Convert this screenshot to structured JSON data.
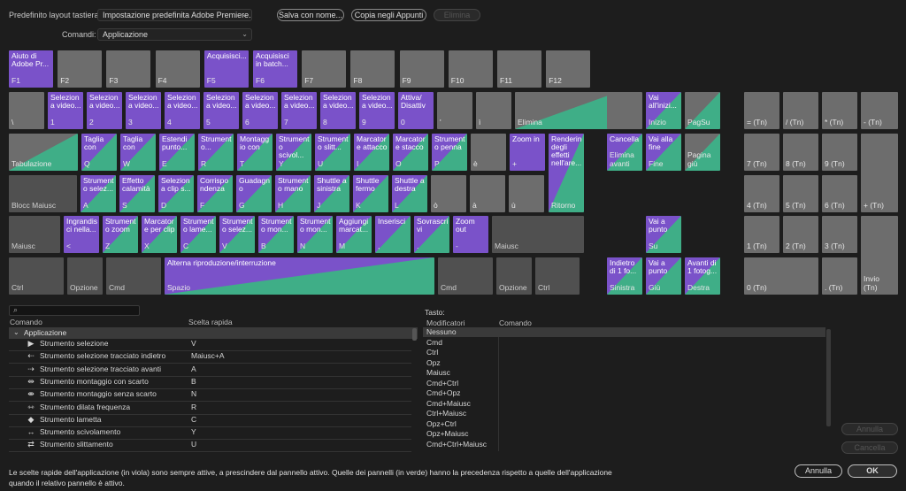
{
  "top": {
    "preset_label": "Predefinito layout tastiera:",
    "preset_value": "Impostazione predefinita Adobe Premiere...",
    "commands_label": "Comandi:",
    "commands_value": "Applicazione",
    "save_as": "Salva con nome...",
    "copy": "Copia negli Appunti",
    "delete": "Elimina"
  },
  "keyboard": {
    "row1": [
      {
        "cmd": "Aiuto di\nAdobe Pr...",
        "key": "F1",
        "c": "purple"
      },
      {
        "cmd": "",
        "key": "F2",
        "c": "grey"
      },
      {
        "cmd": "",
        "key": "F3",
        "c": "grey"
      },
      {
        "cmd": "",
        "key": "F4",
        "c": "grey"
      },
      {
        "cmd": "Acquisisci...",
        "key": "F5",
        "c": "purple"
      },
      {
        "cmd": "Acquisisci\nin batch...",
        "key": "F6",
        "c": "purple"
      },
      {
        "cmd": "",
        "key": "F7",
        "c": "grey"
      },
      {
        "cmd": "",
        "key": "F8",
        "c": "grey"
      },
      {
        "cmd": "",
        "key": "F9",
        "c": "grey"
      },
      {
        "cmd": "",
        "key": "F10",
        "c": "grey"
      },
      {
        "cmd": "",
        "key": "F11",
        "c": "grey"
      },
      {
        "cmd": "",
        "key": "F12",
        "c": "grey"
      }
    ],
    "row2": [
      {
        "cmd": "",
        "key": "\\",
        "c": "grey"
      },
      {
        "cmd": "Selezion\na video...",
        "key": "1",
        "c": "purple"
      },
      {
        "cmd": "Selezion\na video...",
        "key": "2",
        "c": "purple"
      },
      {
        "cmd": "Selezion\na video...",
        "key": "3",
        "c": "purple"
      },
      {
        "cmd": "Selezion\na video...",
        "key": "4",
        "c": "purple"
      },
      {
        "cmd": "Selezion\na video...",
        "key": "5",
        "c": "purple"
      },
      {
        "cmd": "Selezion\na video...",
        "key": "6",
        "c": "purple"
      },
      {
        "cmd": "Selezion\na video...",
        "key": "7",
        "c": "purple"
      },
      {
        "cmd": "Selezion\na video...",
        "key": "8",
        "c": "purple"
      },
      {
        "cmd": "Selezion\na video...",
        "key": "9",
        "c": "purple"
      },
      {
        "cmd": "Attiva/\nDisattiv",
        "key": "0",
        "c": "purple"
      },
      {
        "cmd": "",
        "key": "'",
        "c": "grey"
      },
      {
        "cmd": "",
        "key": "ì",
        "c": "grey"
      },
      {
        "cmd": "",
        "key": "Elimina",
        "c": "mixg"
      }
    ],
    "row3": [
      {
        "cmd": "",
        "key": "Tabulazione",
        "c": "mixg"
      },
      {
        "cmd": "Taglia\ncon",
        "key": "Q",
        "c": "split"
      },
      {
        "cmd": "Taglia\ncon",
        "key": "W",
        "c": "split"
      },
      {
        "cmd": "Estendi\npunto...",
        "key": "E",
        "c": "split"
      },
      {
        "cmd": "Strument\no...",
        "key": "R",
        "c": "split"
      },
      {
        "cmd": "Montagg\nio con",
        "key": "T",
        "c": "split"
      },
      {
        "cmd": "Strument\no scivol...",
        "key": "Y",
        "c": "split"
      },
      {
        "cmd": "Strument\no slitt...",
        "key": "U",
        "c": "split"
      },
      {
        "cmd": "Marcator\ne attacco",
        "key": "I",
        "c": "split"
      },
      {
        "cmd": "Marcator\ne stacco",
        "key": "O",
        "c": "split"
      },
      {
        "cmd": "Strument\no penna",
        "key": "P",
        "c": "split"
      },
      {
        "cmd": "",
        "key": "è",
        "c": "grey"
      },
      {
        "cmd": "Zoom in",
        "key": "+",
        "c": "purple"
      },
      {
        "cmd": "Rendering\ndegli\neffetti\nnell'are...",
        "key": "Ritorno",
        "c": "split"
      }
    ],
    "row4": [
      {
        "cmd": "",
        "key": "Blocc Maiusc",
        "c": "dark"
      },
      {
        "cmd": "Strument\no selez...",
        "key": "A",
        "c": "split"
      },
      {
        "cmd": "Effetto\ncalamità",
        "key": "S",
        "c": "split"
      },
      {
        "cmd": "Selezion\na clip s...",
        "key": "D",
        "c": "split"
      },
      {
        "cmd": "Corrispo\nndenza",
        "key": "F",
        "c": "split"
      },
      {
        "cmd": "Guadagn\no",
        "key": "G",
        "c": "split"
      },
      {
        "cmd": "Strument\no mano",
        "key": "H",
        "c": "split"
      },
      {
        "cmd": "Shuttle a\nsinistra",
        "key": "J",
        "c": "split"
      },
      {
        "cmd": "Shuttle\nfermo",
        "key": "K",
        "c": "split"
      },
      {
        "cmd": "Shuttle a\ndestra",
        "key": "L",
        "c": "split"
      },
      {
        "cmd": "",
        "key": "ò",
        "c": "grey"
      },
      {
        "cmd": "",
        "key": "à",
        "c": "grey"
      },
      {
        "cmd": "",
        "key": "ù",
        "c": "grey"
      }
    ],
    "row5": [
      {
        "cmd": "",
        "key": "Maiusc",
        "c": "dark"
      },
      {
        "cmd": "Ingrandis\nci nella...",
        "key": "<",
        "c": "purple"
      },
      {
        "cmd": "Strument\no zoom",
        "key": "Z",
        "c": "split"
      },
      {
        "cmd": "Marcator\ne per clip",
        "key": "X",
        "c": "split"
      },
      {
        "cmd": "Strument\no lame...",
        "key": "C",
        "c": "split"
      },
      {
        "cmd": "Strument\no selez...",
        "key": "V",
        "c": "split"
      },
      {
        "cmd": "Strument\no mon...",
        "key": "B",
        "c": "split"
      },
      {
        "cmd": "Strument\no mon...",
        "key": "N",
        "c": "split"
      },
      {
        "cmd": "Aggiungi\nmarcat...",
        "key": "M",
        "c": "split"
      },
      {
        "cmd": "Inserisci",
        "key": ",",
        "c": "split"
      },
      {
        "cmd": "Sovrascri\nvi",
        "key": ".",
        "c": "split"
      },
      {
        "cmd": "Zoom\nout",
        "key": "-",
        "c": "purple"
      },
      {
        "cmd": "",
        "key": "Maiusc",
        "c": "dark"
      }
    ],
    "row6": [
      {
        "cmd": "",
        "key": "Ctrl",
        "c": "dark"
      },
      {
        "cmd": "",
        "key": "Opzione",
        "c": "dark"
      },
      {
        "cmd": "",
        "key": "Cmd",
        "c": "dark"
      },
      {
        "cmd": "Alterna riproduzione/interruzione",
        "key": "Spazio",
        "c": "split"
      },
      {
        "cmd": "",
        "key": "Cmd",
        "c": "dark"
      },
      {
        "cmd": "",
        "key": "Opzione",
        "c": "dark"
      },
      {
        "cmd": "",
        "key": "Ctrl",
        "c": "dark"
      }
    ],
    "nav": [
      {
        "cmd": "",
        "key": "",
        "c": "grey"
      },
      {
        "cmd": "Vai\nall'inizi...",
        "key": "Inizio",
        "c": "split"
      },
      {
        "cmd": "",
        "key": "PagSu",
        "c": "mixg"
      },
      {
        "cmd": "Cancella",
        "key": "Elimina\navanti",
        "c": "split"
      },
      {
        "cmd": "Vai alla\nfine",
        "key": "Fine",
        "c": "split"
      },
      {
        "cmd": "",
        "key": "Pagina\ngiù",
        "c": "mixg"
      },
      {
        "cmd": "Vai a\npunto",
        "key": "Su",
        "c": "split"
      },
      {
        "cmd": "Indietro\ndi 1 fo...",
        "key": "Sinistra",
        "c": "split"
      },
      {
        "cmd": "Vai a\npunto",
        "key": "Giù",
        "c": "split"
      },
      {
        "cmd": "Avanti di\n1 fotog...",
        "key": "Destra",
        "c": "split"
      }
    ],
    "numpad": [
      {
        "key": "= (Tn)"
      },
      {
        "key": "/ (Tn)"
      },
      {
        "key": "* (Tn)"
      },
      {
        "key": "- (Tn)"
      },
      {
        "key": "7 (Tn)"
      },
      {
        "key": "8 (Tn)"
      },
      {
        "key": "9 (Tn)"
      },
      {
        "key": "+ (Tn)"
      },
      {
        "key": "4 (Tn)"
      },
      {
        "key": "5 (Tn)"
      },
      {
        "key": "6 (Tn)"
      },
      {
        "key": "1 (Tn)"
      },
      {
        "key": "2 (Tn)"
      },
      {
        "key": "3 (Tn)"
      },
      {
        "key": "Invio\n(Tn)"
      },
      {
        "key": "0 (Tn)"
      },
      {
        "key": ". (Tn)"
      }
    ]
  },
  "search": {
    "placeholder": ""
  },
  "left_table": {
    "col_command": "Comando",
    "col_shortcut": "Scelta rapida",
    "group": "Applicazione",
    "rows": [
      {
        "icon": "▶",
        "label": "Strumento selezione",
        "shortcut": "V"
      },
      {
        "icon": "⇠",
        "label": "Strumento selezione tracciato indietro",
        "shortcut": "Maiusc+A"
      },
      {
        "icon": "⇢",
        "label": "Strumento selezione tracciato avanti",
        "shortcut": "A"
      },
      {
        "icon": "⇹",
        "label": "Strumento montaggio con scarto",
        "shortcut": "B"
      },
      {
        "icon": "⇼",
        "label": "Strumento montaggio senza scarto",
        "shortcut": "N"
      },
      {
        "icon": "⇿",
        "label": "Strumento dilata frequenza",
        "shortcut": "R"
      },
      {
        "icon": "◆",
        "label": "Strumento lametta",
        "shortcut": "C"
      },
      {
        "icon": "↔",
        "label": "Strumento scivolamento",
        "shortcut": "Y"
      },
      {
        "icon": "⇄",
        "label": "Strumento slittamento",
        "shortcut": "U"
      }
    ]
  },
  "right_table": {
    "title": "Tasto:",
    "col_mod": "Modificatori",
    "col_cmd": "Comando",
    "rows": [
      "Nessuno",
      "Cmd",
      "Ctrl",
      "Opz",
      "Maiusc",
      "Cmd+Ctrl",
      "Cmd+Opz",
      "Cmd+Maiusc",
      "Ctrl+Maiusc",
      "Opz+Ctrl",
      "Opz+Maiusc",
      "Cmd+Ctrl+Maiusc"
    ]
  },
  "side_buttons": {
    "undo": "Annulla",
    "cancel": "Cancella"
  },
  "footer": {
    "text1": "Le scelte rapide dell'applicazione (in viola) sono sempre attive, a prescindere dal pannello attivo. Quelle dei pannelli (in verde) hanno la precedenza rispetto a quelle dell'applicazione",
    "text2": "quando il relativo pannello è attivo.",
    "cancel": "Annulla",
    "ok": "OK"
  }
}
